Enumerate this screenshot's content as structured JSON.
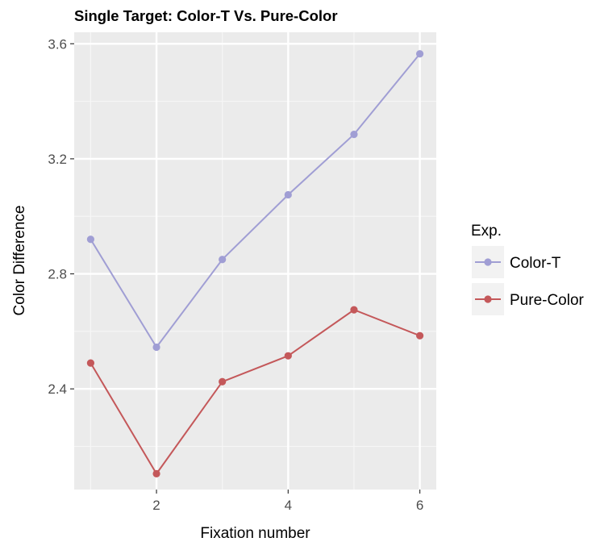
{
  "chart_data": {
    "type": "line",
    "title": "Single Target: Color-T Vs. Pure-Color",
    "xlabel": "Fixation number",
    "ylabel": "Color Difference",
    "x": [
      1,
      2,
      3,
      4,
      5,
      6
    ],
    "xticks": [
      2,
      4,
      6
    ],
    "xlim": [
      0.75,
      6.25
    ],
    "yticks": [
      2.4,
      2.8,
      3.2,
      3.6
    ],
    "ytick_labels": [
      "2.4",
      "2.8",
      "3.2",
      "3.6"
    ],
    "ylim": [
      2.05,
      3.64
    ],
    "grid": true,
    "legend": {
      "title": "Exp.",
      "placement": "right"
    },
    "series": [
      {
        "name": "Color-T",
        "color": "#a09ed4",
        "values": [
          2.92,
          2.545,
          2.85,
          3.075,
          3.285,
          3.565
        ]
      },
      {
        "name": "Pure-Color",
        "color": "#c4585a",
        "values": [
          2.49,
          2.105,
          2.425,
          2.515,
          2.675,
          2.585
        ]
      }
    ]
  }
}
